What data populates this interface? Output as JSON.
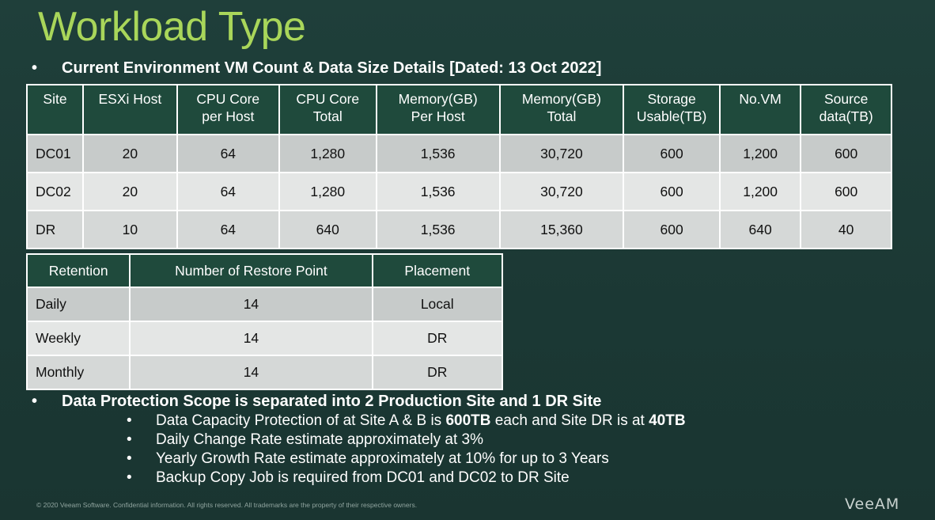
{
  "slide": {
    "title": "Workload Type",
    "heading": "Current Environment VM Count & Data Size Details [Dated: 13 Oct 2022]",
    "bullet_symbol": "•"
  },
  "env_table": {
    "headers": [
      [
        "Site"
      ],
      [
        "ESXi Host"
      ],
      [
        "CPU Core",
        "per Host"
      ],
      [
        "CPU Core",
        "Total"
      ],
      [
        "Memory(GB)",
        "Per Host"
      ],
      [
        "Memory(GB)",
        "Total"
      ],
      [
        "Storage",
        "Usable(TB)"
      ],
      [
        "No.VM"
      ],
      [
        "Source",
        "data(TB)"
      ]
    ],
    "rows": [
      [
        "DC01",
        "20",
        "64",
        "1,280",
        "1,536",
        "30,720",
        "600",
        "1,200",
        "600"
      ],
      [
        "DC02",
        "20",
        "64",
        "1,280",
        "1,536",
        "30,720",
        "600",
        "1,200",
        "600"
      ],
      [
        "DR",
        "10",
        "64",
        "640",
        "1,536",
        "15,360",
        "600",
        "640",
        "40"
      ]
    ]
  },
  "retention_table": {
    "headers": [
      "Retention",
      "Number of Restore Point",
      "Placement"
    ],
    "rows": [
      [
        "Daily",
        "14",
        "Local"
      ],
      [
        "Weekly",
        "14",
        "DR"
      ],
      [
        "Monthly",
        "14",
        "DR"
      ]
    ]
  },
  "scope": {
    "heading": "Data Protection Scope is separated into 2 Production Site and 1 DR Site",
    "item1_pre": "Data Capacity Protection of at Site A & B is ",
    "item1_bold1": "600TB",
    "item1_mid": " each and Site DR is at ",
    "item1_bold2": "40TB",
    "item2": "Daily Change Rate estimate approximately at 3%",
    "item3": "Yearly Growth Rate estimate approximately at 10% for up to 3 Years",
    "item4": "Backup Copy Job is required from DC01 and DC02 to DR Site"
  },
  "footer": {
    "copyright": "© 2020 Veeam Software. Confidential information. All rights reserved. All trademarks are the property of their respective owners.",
    "logo": "VeeAM"
  },
  "colors": {
    "title": "#a9d65a",
    "background": "#1c3a36",
    "table_header": "#1f4a3c"
  }
}
